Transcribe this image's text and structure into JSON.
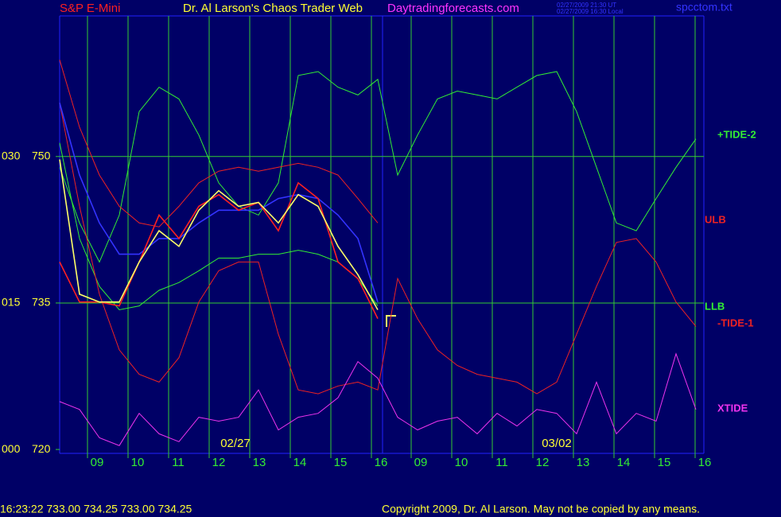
{
  "chart_data": {
    "type": "line",
    "symbol": "S&P E-Mini",
    "title": "Dr. Al Larson's Chaos Trader Web",
    "site": "Daytradingforecasts.com",
    "timestamps": [
      "02/27/2009 21:30 UT",
      "02/27/2009 16:30 Local"
    ],
    "file": "spcctom.txt",
    "quote": "16:23:22 733.00 734.25 733.00 734.25",
    "copyright": "Copyright 2009, Dr. Al Larson. May not be copied by any means.",
    "hour_labels": [
      "09",
      "10",
      "11",
      "12",
      "13",
      "14",
      "15",
      "16",
      "09",
      "10",
      "11",
      "12",
      "13",
      "14",
      "15",
      "16"
    ],
    "date_labels": [
      "02/27",
      "03/02"
    ],
    "ylim": [
      719.6,
      764.4
    ],
    "yticks": [
      720,
      735,
      750
    ],
    "y2lim": [
      -0.4,
      44.4
    ],
    "y2ticks": [
      {
        "value": 0,
        "label": "000"
      },
      {
        "value": 15,
        "label": "015"
      },
      {
        "value": 30,
        "label": "030"
      }
    ],
    "grid": true,
    "series": [
      {
        "name": "+TIDE-2",
        "color": "#33ee33",
        "axis": "y2",
        "values": [
          28.9,
          23.2,
          19.2,
          24.0,
          34.6,
          37.1,
          35.9,
          32.2,
          27.3,
          24.9,
          24.0,
          27.3,
          38.3,
          38.7,
          37.1,
          36.3,
          37.9,
          28.1,
          32.2,
          35.9,
          36.7,
          36.3,
          35.9,
          37.1,
          38.3,
          38.7,
          34.6,
          28.9,
          23.2,
          22.4,
          25.7,
          28.9,
          31.8
        ]
      },
      {
        "name": "ULB",
        "color": "#ee2222",
        "values": [
          759.9,
          753.0,
          748.1,
          744.9,
          743.2,
          742.8,
          744.9,
          747.3,
          748.5,
          748.9,
          748.5,
          748.9,
          749.3,
          748.9,
          748.1,
          745.7,
          743.2,
          null,
          null,
          null,
          null,
          null,
          null,
          null,
          null,
          null,
          null,
          null,
          null,
          null,
          null,
          null,
          null
        ]
      },
      {
        "name": "LLB",
        "color": "#33ee33",
        "values": [
          751.4,
          741.6,
          736.7,
          734.3,
          734.7,
          736.3,
          737.1,
          738.3,
          739.6,
          739.6,
          740.0,
          740.0,
          740.4,
          740.0,
          739.2,
          737.5,
          734.7,
          null,
          null,
          null,
          null,
          null,
          null,
          null,
          null,
          null,
          null,
          null,
          null,
          null,
          null,
          null,
          null
        ]
      },
      {
        "name": "-TIDE-1",
        "color": "#ee2222",
        "values": [
          755.5,
          744.9,
          735.9,
          730.2,
          727.7,
          726.9,
          729.4,
          735.1,
          738.3,
          739.2,
          739.2,
          731.8,
          726.1,
          725.7,
          726.5,
          726.9,
          726.1,
          737.5,
          733.4,
          730.2,
          728.6,
          727.7,
          727.3,
          726.9,
          725.7,
          726.9,
          731.8,
          736.7,
          741.2,
          741.6,
          739.2,
          735.1,
          732.6
        ]
      },
      {
        "name": "XTIDE",
        "color": "#ee33ee",
        "axis": "y2",
        "values": [
          4.9,
          4.1,
          1.2,
          0.4,
          3.7,
          1.6,
          0.8,
          3.3,
          2.9,
          3.3,
          6.1,
          2.0,
          3.3,
          3.7,
          5.3,
          9.0,
          7.3,
          3.3,
          2.0,
          2.9,
          3.3,
          1.6,
          3.7,
          2.4,
          4.1,
          3.7,
          1.6,
          6.9,
          1.6,
          3.7,
          2.9,
          9.8,
          4.1
        ]
      },
      {
        "color": "#3333ff",
        "values": [
          755.5,
          748.1,
          743.2,
          740.0,
          740.0,
          741.6,
          741.6,
          743.2,
          744.5,
          744.5,
          744.5,
          745.7,
          746.1,
          745.7,
          744.0,
          741.6,
          735.1,
          null,
          null,
          null,
          null,
          null,
          null,
          null,
          null,
          null,
          null,
          null,
          null,
          null,
          null,
          null,
          null
        ]
      },
      {
        "color": "#ff2020",
        "values": [
          739.2,
          735.1,
          735.1,
          734.7,
          739.2,
          744.0,
          741.6,
          744.9,
          746.1,
          744.5,
          745.3,
          742.4,
          747.3,
          745.7,
          739.2,
          737.5,
          733.4,
          null,
          null,
          null,
          null,
          null,
          null,
          null,
          null,
          null,
          null,
          null,
          null,
          null,
          null,
          null,
          null
        ]
      },
      {
        "color": "#ffff66",
        "values": [
          749.7,
          735.9,
          735.1,
          735.1,
          739.2,
          742.4,
          740.8,
          744.5,
          746.5,
          744.9,
          745.3,
          743.2,
          746.1,
          744.9,
          740.8,
          737.9,
          734.3,
          null,
          null,
          null,
          null,
          null,
          null,
          null,
          null,
          null,
          null,
          null,
          null,
          null,
          null,
          null,
          null
        ]
      }
    ]
  }
}
